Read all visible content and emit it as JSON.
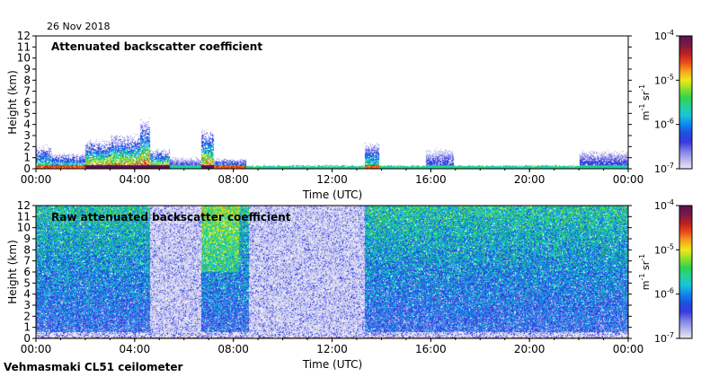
{
  "date": "26 Nov 2018",
  "footer": "Vehmasmaki CL51 ceilometer",
  "palette": [
    "#e9e9f6",
    "#b6b6ec",
    "#7f7fe6",
    "#3a3ae2",
    "#1e4fe0",
    "#0d87f0",
    "#18c4d8",
    "#25d19a",
    "#2ed34c",
    "#8ee02a",
    "#f0e818",
    "#f6a51c",
    "#ee4a1c",
    "#bb1f1f",
    "#7a1a4a",
    "#5a1050"
  ],
  "chart_data": [
    {
      "type": "heatmap",
      "title": "Attenuated backscatter coefficient",
      "xlabel": "Time (UTC)",
      "ylabel": "Height (km)",
      "xlim": [
        0,
        24
      ],
      "ylim": [
        0,
        12
      ],
      "xticks": [
        "00:00",
        "04:00",
        "08:00",
        "12:00",
        "16:00",
        "20:00",
        "00:00"
      ],
      "yticks": [
        "0",
        "1",
        "2",
        "3",
        "4",
        "5",
        "6",
        "7",
        "8",
        "9",
        "10",
        "11",
        "12"
      ],
      "colorbar": {
        "ticks": [
          "10-7",
          "10-6",
          "10-5",
          "10-4"
        ],
        "label": "m-1 sr-1",
        "scale": "log",
        "range": [
          1e-07,
          0.0001
        ]
      },
      "features": [
        {
          "start": 0.0,
          "end": 0.6,
          "top_km": 1.8,
          "level": "medium"
        },
        {
          "start": 0.6,
          "end": 2.0,
          "top_km": 1.2,
          "level": "medium"
        },
        {
          "start": 2.0,
          "end": 3.0,
          "top_km": 2.2,
          "level": "high"
        },
        {
          "start": 3.0,
          "end": 4.2,
          "top_km": 2.6,
          "level": "high"
        },
        {
          "start": 4.2,
          "end": 4.6,
          "top_km": 3.8,
          "level": "high"
        },
        {
          "start": 4.6,
          "end": 5.4,
          "top_km": 1.5,
          "level": "high"
        },
        {
          "start": 5.4,
          "end": 6.7,
          "top_km": 0.9,
          "level": "low"
        },
        {
          "start": 6.7,
          "end": 7.2,
          "top_km": 3.0,
          "level": "high"
        },
        {
          "start": 7.2,
          "end": 8.5,
          "top_km": 0.8,
          "level": "medium"
        },
        {
          "start": 8.5,
          "end": 13.3,
          "top_km": 0.3,
          "level": "low"
        },
        {
          "start": 13.3,
          "end": 13.9,
          "top_km": 2.0,
          "level": "medium"
        },
        {
          "start": 13.9,
          "end": 15.8,
          "top_km": 0.3,
          "level": "low"
        },
        {
          "start": 15.8,
          "end": 16.9,
          "top_km": 1.5,
          "level": "low"
        },
        {
          "start": 16.9,
          "end": 22.0,
          "top_km": 0.3,
          "level": "low"
        },
        {
          "start": 22.0,
          "end": 24.0,
          "top_km": 1.4,
          "level": "low"
        }
      ]
    },
    {
      "type": "heatmap",
      "title": "Raw attenuated backscatter coefficient",
      "xlabel": "Time (UTC)",
      "ylabel": "Height (km)",
      "xlim": [
        0,
        24
      ],
      "ylim": [
        0,
        12
      ],
      "xticks": [
        "00:00",
        "04:00",
        "08:00",
        "12:00",
        "16:00",
        "20:00",
        "00:00"
      ],
      "yticks": [
        "0",
        "1",
        "2",
        "3",
        "4",
        "5",
        "6",
        "7",
        "8",
        "9",
        "10",
        "11",
        "12"
      ],
      "colorbar": {
        "ticks": [
          "10-7",
          "10-6",
          "10-5",
          "10-4"
        ],
        "label": "m-1 sr-1",
        "scale": "log",
        "range": [
          1e-07,
          0.0001
        ]
      },
      "noise_segments": [
        {
          "start": 0.0,
          "end": 4.6,
          "level": "high"
        },
        {
          "start": 4.6,
          "end": 6.7,
          "level": "low"
        },
        {
          "start": 6.7,
          "end": 8.6,
          "level": "high"
        },
        {
          "start": 8.6,
          "end": 13.3,
          "level": "low"
        },
        {
          "start": 13.3,
          "end": 24.0,
          "level": "high"
        }
      ]
    }
  ]
}
